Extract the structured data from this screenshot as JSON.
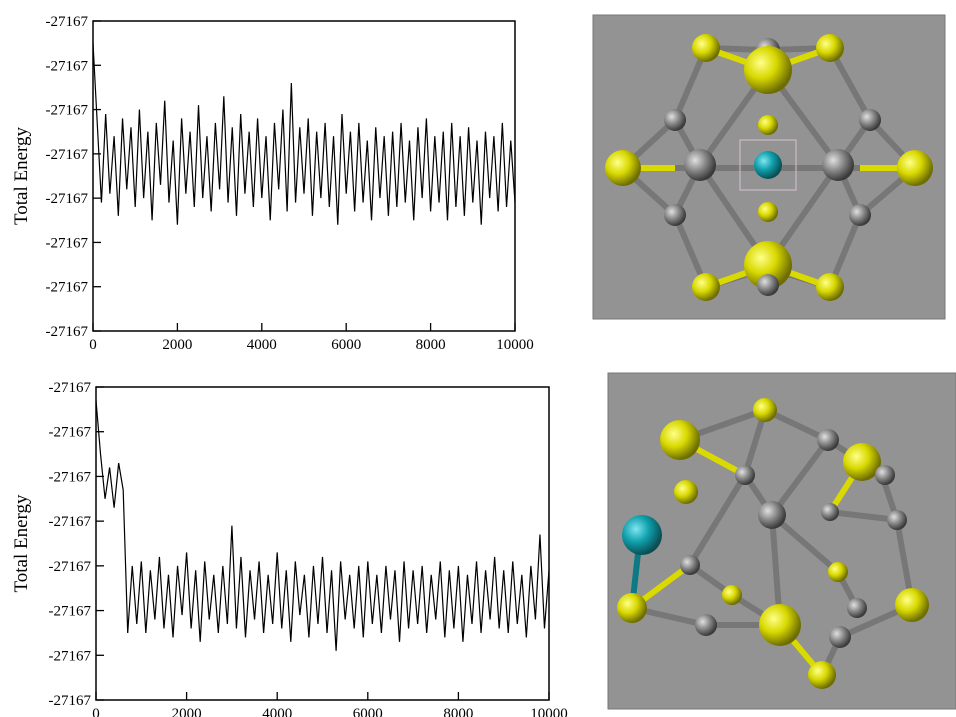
{
  "chart_data": [
    {
      "type": "line",
      "y_label": "Total Energy",
      "x": [
        0,
        100,
        200,
        300,
        400,
        500,
        600,
        700,
        800,
        900,
        1000,
        1100,
        1200,
        1300,
        1400,
        1500,
        1600,
        1700,
        1800,
        1900,
        2000,
        2100,
        2200,
        2300,
        2400,
        2500,
        2600,
        2700,
        2800,
        2900,
        3000,
        3100,
        3200,
        3300,
        3400,
        3500,
        3600,
        3700,
        3800,
        3900,
        4000,
        4100,
        4200,
        4300,
        4400,
        4500,
        4600,
        4700,
        4800,
        4900,
        5000,
        5100,
        5200,
        5300,
        5400,
        5500,
        5600,
        5700,
        5800,
        5900,
        6000,
        6100,
        6200,
        6300,
        6400,
        6500,
        6600,
        6700,
        6800,
        6900,
        7000,
        7100,
        7200,
        7300,
        7400,
        7500,
        7600,
        7700,
        7800,
        7900,
        8000,
        8100,
        8200,
        8300,
        8400,
        8500,
        8600,
        8700,
        8800,
        8900,
        9000,
        9100,
        9200,
        9300,
        9400,
        9500,
        9600,
        9700,
        9800,
        9900,
        10000
      ],
      "series": [
        {
          "color": "#000000",
          "values": [
            -27166.7,
            -27166.88,
            -27167.06,
            -27166.86,
            -27167.04,
            -27166.91,
            -27167.09,
            -27166.87,
            -27167.03,
            -27166.89,
            -27167.07,
            -27166.85,
            -27167.05,
            -27166.9,
            -27167.1,
            -27166.88,
            -27167.02,
            -27166.83,
            -27167.06,
            -27166.92,
            -27167.11,
            -27166.87,
            -27167.04,
            -27166.9,
            -27167.07,
            -27166.84,
            -27167.05,
            -27166.91,
            -27167.08,
            -27166.88,
            -27167.03,
            -27166.82,
            -27167.06,
            -27166.89,
            -27167.09,
            -27166.86,
            -27167.04,
            -27166.9,
            -27167.07,
            -27166.87,
            -27167.05,
            -27166.91,
            -27167.1,
            -27166.88,
            -27167.03,
            -27166.85,
            -27167.08,
            -27166.79,
            -27167.06,
            -27166.89,
            -27167.04,
            -27166.87,
            -27167.09,
            -27166.9,
            -27167.05,
            -27166.88,
            -27167.07,
            -27166.91,
            -27167.11,
            -27166.86,
            -27167.04,
            -27166.9,
            -27167.08,
            -27166.88,
            -27167.06,
            -27166.92,
            -27167.1,
            -27166.89,
            -27167.05,
            -27166.91,
            -27167.09,
            -27166.9,
            -27167.07,
            -27166.88,
            -27167.06,
            -27166.92,
            -27167.1,
            -27166.89,
            -27167.05,
            -27166.87,
            -27167.08,
            -27166.91,
            -27167.06,
            -27166.9,
            -27167.1,
            -27166.88,
            -27167.07,
            -27166.91,
            -27167.09,
            -27166.89,
            -27167.06,
            -27166.92,
            -27167.11,
            -27166.9,
            -27167.05,
            -27166.91,
            -27167.08,
            -27166.88,
            -27167.07,
            -27166.92,
            -27167.06
          ]
        }
      ],
      "xlim": [
        0,
        10000
      ],
      "xticks": [
        0,
        2000,
        4000,
        6000,
        8000,
        10000
      ],
      "ylim": [
        -27167.35,
        -27166.65
      ],
      "yticks": [
        {
          "value": -27167.35,
          "label": "-27167"
        },
        {
          "value": -27167.25,
          "label": "-27167"
        },
        {
          "value": -27167.15,
          "label": "-27167"
        },
        {
          "value": -27167.05,
          "label": "-27167"
        },
        {
          "value": -27166.95,
          "label": "-27167"
        },
        {
          "value": -27166.85,
          "label": "-27167"
        },
        {
          "value": -27166.75,
          "label": "-27167"
        },
        {
          "value": -27166.65,
          "label": "-27167"
        }
      ]
    },
    {
      "type": "line",
      "y_label": "Total Energy",
      "x": [
        0,
        100,
        200,
        300,
        400,
        500,
        600,
        700,
        800,
        900,
        1000,
        1100,
        1200,
        1300,
        1400,
        1500,
        1600,
        1700,
        1800,
        1900,
        2000,
        2100,
        2200,
        2300,
        2400,
        2500,
        2600,
        2700,
        2800,
        2900,
        3000,
        3100,
        3200,
        3300,
        3400,
        3500,
        3600,
        3700,
        3800,
        3900,
        4000,
        4100,
        4200,
        4300,
        4400,
        4500,
        4600,
        4700,
        4800,
        4900,
        5000,
        5100,
        5200,
        5300,
        5400,
        5500,
        5600,
        5700,
        5800,
        5900,
        6000,
        6100,
        6200,
        6300,
        6400,
        6500,
        6600,
        6700,
        6800,
        6900,
        7000,
        7100,
        7200,
        7300,
        7400,
        7500,
        7600,
        7700,
        7800,
        7900,
        8000,
        8100,
        8200,
        8300,
        8400,
        8500,
        8600,
        8700,
        8800,
        8900,
        9000,
        9100,
        9200,
        9300,
        9400,
        9500,
        9600,
        9700,
        9800,
        9900,
        10000
      ],
      "series": [
        {
          "color": "#000000",
          "values": [
            -27166.68,
            -27166.8,
            -27166.9,
            -27166.83,
            -27166.92,
            -27166.82,
            -27166.88,
            -27167.2,
            -27167.05,
            -27167.18,
            -27167.04,
            -27167.2,
            -27167.06,
            -27167.17,
            -27167.03,
            -27167.19,
            -27167.07,
            -27167.21,
            -27167.05,
            -27167.16,
            -27167.02,
            -27167.19,
            -27167.06,
            -27167.22,
            -27167.04,
            -27167.17,
            -27167.07,
            -27167.2,
            -27167.05,
            -27167.18,
            -27166.96,
            -27167.19,
            -27167.03,
            -27167.21,
            -27167.06,
            -27167.17,
            -27167.04,
            -27167.2,
            -27167.07,
            -27167.18,
            -27167.02,
            -27167.19,
            -27167.06,
            -27167.22,
            -27167.04,
            -27167.16,
            -27167.07,
            -27167.21,
            -27167.05,
            -27167.18,
            -27167.03,
            -27167.2,
            -27167.06,
            -27167.24,
            -27167.04,
            -27167.17,
            -27167.07,
            -27167.19,
            -27167.05,
            -27167.21,
            -27167.04,
            -27167.18,
            -27167.07,
            -27167.2,
            -27167.05,
            -27167.17,
            -27167.06,
            -27167.22,
            -27167.04,
            -27167.19,
            -27167.06,
            -27167.18,
            -27167.05,
            -27167.2,
            -27167.07,
            -27167.17,
            -27167.04,
            -27167.21,
            -27167.06,
            -27167.19,
            -27167.05,
            -27167.22,
            -27167.07,
            -27167.18,
            -27167.04,
            -27167.2,
            -27167.06,
            -27167.17,
            -27167.03,
            -27167.19,
            -27167.06,
            -27167.2,
            -27167.04,
            -27167.18,
            -27167.07,
            -27167.21,
            -27167.05,
            -27167.17,
            -27166.98,
            -27167.19,
            -27167.06
          ]
        }
      ],
      "xlim": [
        0,
        10000
      ],
      "xticks": [
        0,
        2000,
        4000,
        6000,
        8000,
        10000
      ],
      "ylim": [
        -27167.35,
        -27166.65
      ],
      "yticks": [
        {
          "value": -27167.35,
          "label": "-27167"
        },
        {
          "value": -27167.25,
          "label": "-27167"
        },
        {
          "value": -27167.15,
          "label": "-27167"
        },
        {
          "value": -27167.05,
          "label": "-27167"
        },
        {
          "value": -27166.95,
          "label": "-27167"
        },
        {
          "value": -27166.85,
          "label": "-27167"
        },
        {
          "value": -27166.75,
          "label": "-27167"
        },
        {
          "value": -27166.65,
          "label": "-27167"
        }
      ]
    }
  ]
}
